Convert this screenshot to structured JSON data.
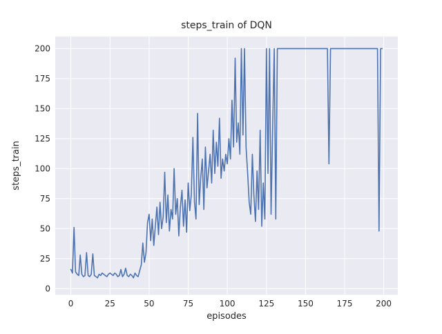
{
  "figure": {
    "background": "#ffffff"
  },
  "chart_data": {
    "type": "line",
    "title": "steps_train of DQN",
    "xlabel": "episodes",
    "ylabel": "steps_train",
    "xlim": [
      -10,
      209
    ],
    "ylim": [
      -5,
      210
    ],
    "xticks": [
      0,
      25,
      50,
      75,
      100,
      125,
      150,
      175,
      200
    ],
    "yticks": [
      0,
      25,
      50,
      75,
      100,
      125,
      150,
      175,
      200
    ],
    "grid": true,
    "legend": false,
    "plot_bg": "#eaeaf2",
    "grid_color": "#ffffff",
    "line_color": "#4c72b0",
    "series": [
      {
        "name": "steps_train",
        "x_start": 0,
        "x_step": 1,
        "values": [
          16,
          13,
          51,
          14,
          12,
          11,
          28,
          12,
          10,
          11,
          30,
          11,
          10,
          12,
          29,
          11,
          10,
          9,
          12,
          11,
          13,
          12,
          11,
          10,
          12,
          13,
          12,
          11,
          13,
          12,
          10,
          11,
          16,
          10,
          12,
          17,
          11,
          10,
          12,
          11,
          9,
          13,
          11,
          10,
          15,
          20,
          38,
          22,
          30,
          55,
          62,
          40,
          58,
          36,
          52,
          68,
          45,
          72,
          50,
          60,
          97,
          55,
          78,
          48,
          66,
          58,
          100,
          62,
          75,
          44,
          68,
          82,
          52,
          74,
          47,
          88,
          65,
          78,
          126,
          72,
          58,
          146,
          70,
          92,
          108,
          66,
          118,
          84,
          98,
          112,
          88,
          132,
          96,
          122,
          102,
          142,
          92,
          108,
          98,
          112,
          104,
          125,
          108,
          157,
          118,
          192,
          122,
          138,
          112,
          200,
          128,
          200,
          118,
          96,
          72,
          62,
          112,
          78,
          56,
          98,
          66,
          132,
          52,
          88,
          58,
          200,
          96,
          200,
          62,
          134,
          200,
          58,
          200,
          200,
          200,
          200,
          200,
          200,
          200,
          200,
          200,
          200,
          200,
          200,
          200,
          200,
          200,
          200,
          200,
          200,
          200,
          200,
          200,
          200,
          200,
          200,
          200,
          200,
          200,
          200,
          200,
          200,
          200,
          200,
          200,
          104,
          200,
          200,
          200,
          200,
          200,
          200,
          200,
          200,
          200,
          200,
          200,
          200,
          200,
          200,
          200,
          200,
          200,
          200,
          200,
          200,
          200,
          200,
          200,
          200,
          200,
          200,
          200,
          200,
          200,
          200,
          200,
          48,
          200,
          200
        ]
      }
    ]
  }
}
